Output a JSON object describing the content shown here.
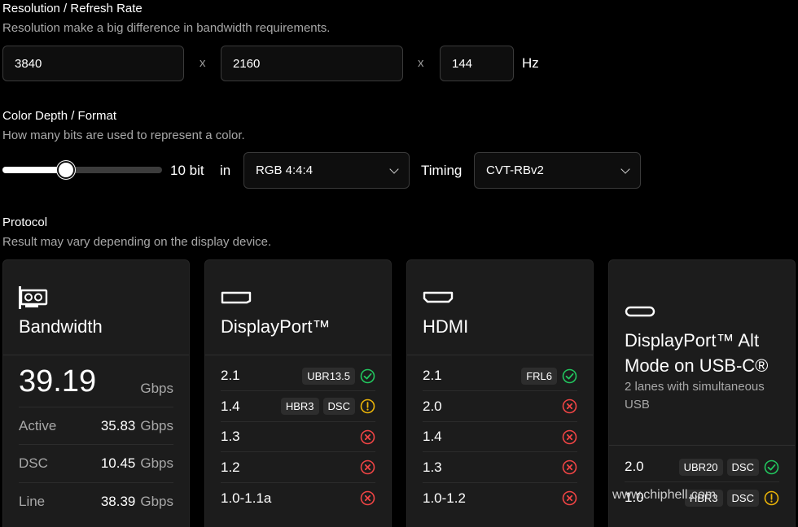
{
  "resolution": {
    "title": "Resolution / Refresh Rate",
    "subtitle": "Resolution make a big difference in bandwidth requirements.",
    "width": "3840",
    "height": "2160",
    "refresh": "144",
    "sep": "x",
    "unit": "Hz"
  },
  "color": {
    "title": "Color Depth / Format",
    "subtitle": "How many bits are used to represent a color.",
    "depth_label": "10 bit",
    "depth_fraction": 0.4,
    "in_label": "in",
    "format": "RGB 4:4:4",
    "timing_label": "Timing",
    "timing": "CVT-RBv2"
  },
  "protocol": {
    "title": "Protocol",
    "subtitle": "Result may vary depending on the display device."
  },
  "bandwidth": {
    "title": "Bandwidth",
    "value": "39.19",
    "unit": "Gbps",
    "rows": [
      {
        "label": "Active",
        "value": "35.83",
        "unit": "Gbps"
      },
      {
        "label": "DSC",
        "value": "10.45",
        "unit": "Gbps"
      },
      {
        "label": "Line",
        "value": "38.39",
        "unit": "Gbps"
      }
    ]
  },
  "displayport": {
    "title": "DisplayPort™",
    "rows": [
      {
        "ver": "2.1",
        "badges": [
          "UBR13.5"
        ],
        "status": "ok"
      },
      {
        "ver": "1.4",
        "badges": [
          "HBR3",
          "DSC"
        ],
        "status": "warn"
      },
      {
        "ver": "1.3",
        "badges": [],
        "status": "fail"
      },
      {
        "ver": "1.2",
        "badges": [],
        "status": "fail"
      },
      {
        "ver": "1.0-1.1a",
        "badges": [],
        "status": "fail"
      }
    ]
  },
  "hdmi": {
    "title": "HDMI",
    "rows": [
      {
        "ver": "2.1",
        "badges": [
          "FRL6"
        ],
        "status": "ok"
      },
      {
        "ver": "2.0",
        "badges": [],
        "status": "fail"
      },
      {
        "ver": "1.4",
        "badges": [],
        "status": "fail"
      },
      {
        "ver": "1.3",
        "badges": [],
        "status": "fail"
      },
      {
        "ver": "1.0-1.2",
        "badges": [],
        "status": "fail"
      }
    ]
  },
  "usbc": {
    "title_line1": "DisplayPort™ Alt",
    "title_line2": "Mode on USB-C®",
    "subtitle": "2 lanes with simultaneous USB",
    "rows": [
      {
        "ver": "2.0",
        "badges": [
          "UBR20",
          "DSC"
        ],
        "status": "ok"
      },
      {
        "ver": "1.0",
        "badges": [
          "HBR3",
          "DSC"
        ],
        "status": "warn"
      }
    ]
  },
  "watermark": "www.chiphell.com",
  "colors": {
    "ok": "#22c55e",
    "warn": "#eab308",
    "fail": "#ef4444"
  }
}
